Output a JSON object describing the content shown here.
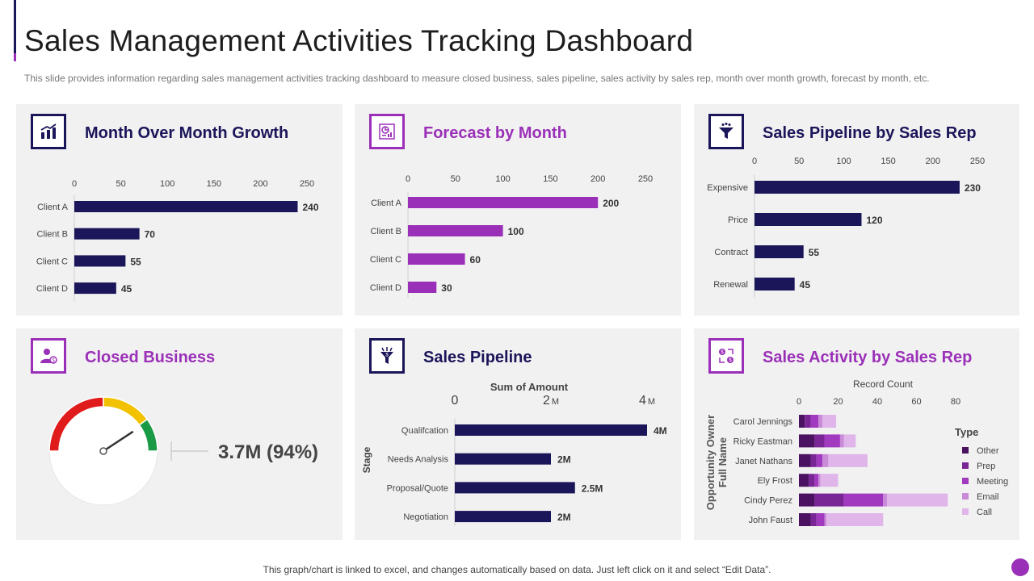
{
  "page": {
    "title": "Sales Management Activities Tracking Dashboard",
    "subtitle": "This slide provides information regarding sales management activities tracking dashboard to measure closed business, sales pipeline, sales activity by sales rep, month over month growth, forecast by month, etc.",
    "footer": "This graph/chart is linked to excel, and changes automatically based on data. Just left click on it and select “Edit Data”."
  },
  "colors": {
    "navy": "#1b1559",
    "purple": "#9b30b8",
    "panel": "#f1f1f1"
  },
  "panels": {
    "mom": {
      "title": "Month Over Month Growth",
      "icon": "bar-chart-icon"
    },
    "forecast": {
      "title": "Forecast by Month",
      "icon": "chart-report-icon"
    },
    "pipeline_rep": {
      "title": "Sales Pipeline by Sales Rep",
      "icon": "funnel-icon"
    },
    "closed": {
      "title": "Closed Business",
      "icon": "user-money-icon",
      "value_label": "3.7M (94%)"
    },
    "pipeline": {
      "title": "Sales Pipeline",
      "icon": "funnel-dollar-icon"
    },
    "activity": {
      "title": "Sales Activity by Sales Rep",
      "icon": "dollar-exchange-icon"
    }
  },
  "chart_data": [
    {
      "id": "mom",
      "type": "bar",
      "orientation": "horizontal",
      "categories": [
        "Client A",
        "Client B",
        "Client C",
        "Client D"
      ],
      "values": [
        240,
        70,
        55,
        45
      ],
      "value_labels": [
        "240",
        "70",
        "55",
        "45"
      ],
      "xlim": [
        0,
        250
      ],
      "xticks": [
        "0",
        "50",
        "100",
        "150",
        "200",
        "250"
      ],
      "color": "#1b1559"
    },
    {
      "id": "forecast",
      "type": "bar",
      "orientation": "horizontal",
      "categories": [
        "Client A",
        "Client B",
        "Client C",
        "Client D"
      ],
      "values": [
        200,
        100,
        60,
        30
      ],
      "value_labels": [
        "200",
        "100",
        "60",
        "30"
      ],
      "xlim": [
        0,
        250
      ],
      "xticks": [
        "0",
        "50",
        "100",
        "150",
        "200",
        "250"
      ],
      "color": "#9b30b8"
    },
    {
      "id": "pipeline_rep",
      "type": "bar",
      "orientation": "horizontal",
      "categories": [
        "Expensive",
        "Price",
        "Contract",
        "Renewal"
      ],
      "values": [
        230,
        120,
        55,
        45
      ],
      "value_labels": [
        "230",
        "120",
        "55",
        "45"
      ],
      "xlim": [
        0,
        250
      ],
      "xticks": [
        "0",
        "50",
        "100",
        "150",
        "200",
        "250"
      ],
      "color": "#1b1559"
    },
    {
      "id": "closed",
      "type": "gauge",
      "value": 94,
      "range": [
        0,
        100
      ],
      "bands": [
        {
          "from": 0,
          "to": 50,
          "color": "#e01b1b"
        },
        {
          "from": 50,
          "to": 80,
          "color": "#f2c200"
        },
        {
          "from": 80,
          "to": 100,
          "color": "#1a9a45"
        }
      ]
    },
    {
      "id": "pipeline",
      "type": "bar",
      "orientation": "horizontal",
      "title": "Sum of Amount",
      "ylabel": "Stage",
      "categories": [
        "Qualifcation",
        "Needs Analysis",
        "Proposal/Quote",
        "Negotiation"
      ],
      "values": [
        4,
        2,
        2.5,
        2
      ],
      "value_labels": [
        "4M",
        "2M",
        "2.5M",
        "2M"
      ],
      "xlim": [
        0,
        4
      ],
      "xticks": [
        {
          "num": "0",
          "unit": ""
        },
        {
          "num": "2",
          "unit": "M"
        },
        {
          "num": "4",
          "unit": "M"
        }
      ],
      "color": "#1b1559"
    },
    {
      "id": "activity",
      "type": "bar",
      "orientation": "horizontal",
      "stacked": true,
      "title": "Record Count",
      "ylabel": [
        "Opportunity Owner",
        "Full Name"
      ],
      "categories": [
        "Carol Jennings",
        "Ricky Eastman",
        "Janet Nathans",
        "Ely Frost",
        "Cindy Perez",
        "John Faust"
      ],
      "series": [
        {
          "name": "Other",
          "color": "#4a1260",
          "values": [
            3,
            8,
            6,
            5,
            8,
            6
          ]
        },
        {
          "name": "Prep",
          "color": "#7a2596",
          "values": [
            3,
            5,
            3,
            3,
            15,
            3
          ]
        },
        {
          "name": "Meeting",
          "color": "#a23ac0",
          "values": [
            4,
            8,
            3,
            2,
            20,
            4
          ]
        },
        {
          "name": "Email",
          "color": "#c98ad8",
          "values": [
            2,
            2,
            3,
            1,
            2,
            1
          ]
        },
        {
          "name": "Call",
          "color": "#dfb5ea",
          "values": [
            7,
            6,
            20,
            9,
            31,
            29
          ]
        }
      ],
      "xlim": [
        0,
        80
      ],
      "xticks": [
        "0",
        "20",
        "40",
        "60",
        "80"
      ],
      "legend_title": "Type"
    }
  ]
}
